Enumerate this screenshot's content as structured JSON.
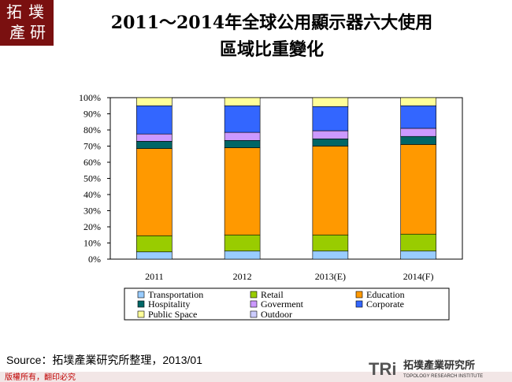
{
  "chart_data": {
    "type": "stacked_bar",
    "title": [
      "2011～2014年全球公用顯示器六大使用",
      "區域比重變化"
    ],
    "categories": [
      "2011",
      "2012",
      "2013(E)",
      "2014(F)"
    ],
    "series": [
      {
        "name": "Transportation",
        "color": "#99ccff",
        "values": [
          4.5,
          5,
          5,
          5
        ]
      },
      {
        "name": "Retail",
        "color": "#99cc00",
        "values": [
          10,
          10,
          10,
          10.5
        ]
      },
      {
        "name": "Education",
        "color": "#ff9900",
        "values": [
          54,
          54,
          55,
          55.5
        ]
      },
      {
        "name": "Hospitality",
        "color": "#006666",
        "values": [
          4.5,
          4.5,
          4.5,
          5
        ]
      },
      {
        "name": "Goverment",
        "color": "#cc99ff",
        "values": [
          4.5,
          5,
          5,
          5
        ]
      },
      {
        "name": "Corporate",
        "color": "#3366ff",
        "values": [
          17.5,
          16.5,
          15,
          14
        ]
      },
      {
        "name": "Public Space",
        "color": "#ffff99",
        "values": [
          5,
          5,
          5.5,
          5
        ]
      },
      {
        "name": "Outdoor",
        "color": "#ccccff",
        "values": [
          0,
          0,
          0,
          0
        ]
      }
    ],
    "ylim": [
      0,
      100
    ],
    "yticks": [
      {
        "value": 0,
        "label": "0%"
      },
      {
        "value": 10,
        "label": "10%"
      },
      {
        "value": 20,
        "label": "20%"
      },
      {
        "value": 30,
        "label": "30%"
      },
      {
        "value": 40,
        "label": "40%"
      },
      {
        "value": 50,
        "label": "50%"
      },
      {
        "value": 60,
        "label": "60%"
      },
      {
        "value": 70,
        "label": "70%"
      },
      {
        "value": 80,
        "label": "80%"
      },
      {
        "value": 90,
        "label": "90%"
      },
      {
        "value": 100,
        "label": "100%"
      }
    ]
  },
  "page": {
    "logo": [
      "拓",
      "墣",
      "產",
      "研"
    ],
    "source": "Source：拓墣產業研究所整理，2013/01",
    "copyright": "版權所有，翻印必究",
    "brand": {
      "mark": "TRi",
      "name": "拓墣產業研究所",
      "english": "TOPOLOGY RESEARCH INSTITUTE"
    }
  }
}
